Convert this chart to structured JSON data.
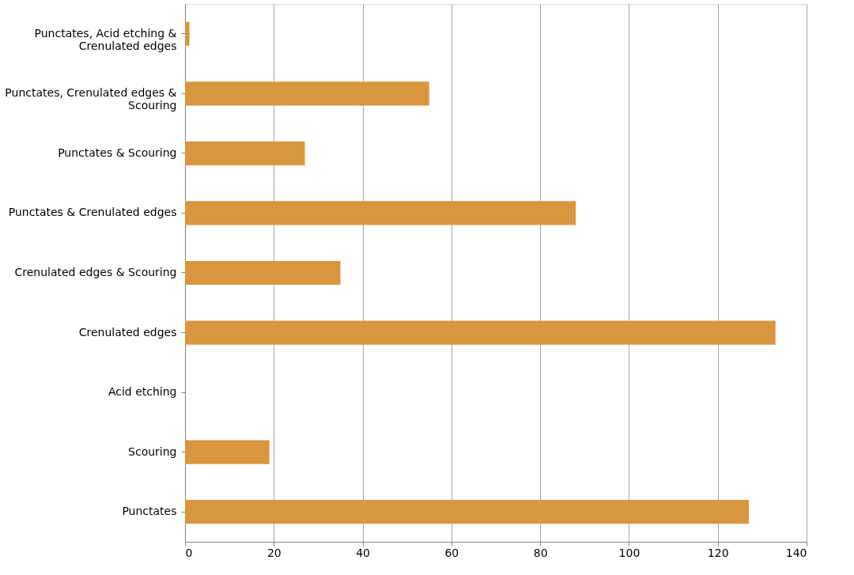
{
  "chart_data": {
    "type": "bar",
    "orientation": "horizontal",
    "categories": [
      "Punctates, Acid etching & Crenulated edges",
      "Punctates, Crenulated edges & Scouring",
      "Punctates & Scouring",
      "Punctates & Crenulated edges",
      "Crenulated edges & Scouring",
      "Crenulated edges",
      "Acid etching",
      "Scouring",
      "Punctates"
    ],
    "values": [
      1,
      55,
      27,
      88,
      35,
      133,
      0,
      19,
      127
    ],
    "color": "#d9963f",
    "xlim": [
      0,
      140
    ],
    "xticks": [
      0,
      20,
      40,
      60,
      80,
      100,
      120,
      140
    ],
    "grid": "x"
  }
}
